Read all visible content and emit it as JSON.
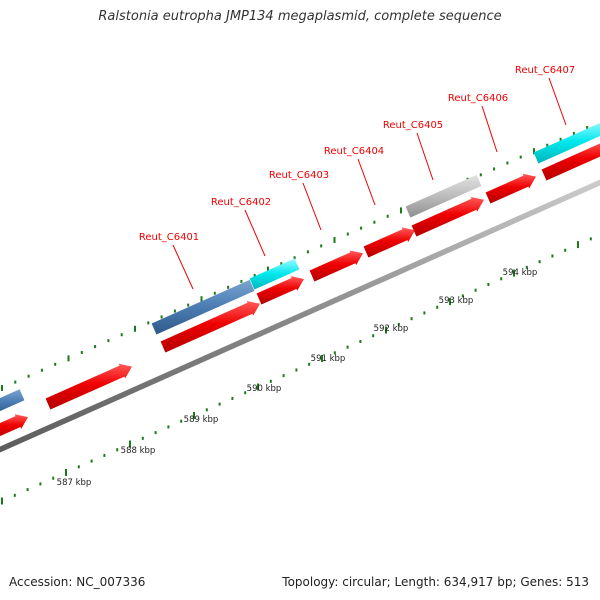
{
  "title": "Ralstonia eutropha JMP134 megaplasmid, complete sequence",
  "footer": {
    "accession": "Accession: NC_007336",
    "info": "Topology: circular; Length: 634,917 bp; Genes: 513"
  },
  "scale_labels": [
    "587 kbp",
    "588 kbp",
    "589 kbp",
    "590 kbp",
    "591 kbp",
    "592 kbp",
    "593 kbp",
    "594 kbp"
  ],
  "gene_labels": [
    "Reut_C6401",
    "Reut_C6402",
    "Reut_C6403",
    "Reut_C6404",
    "Reut_C6405",
    "Reut_C6406",
    "Reut_C6407"
  ],
  "colors": {
    "label": "#ee0000",
    "cds_forward": "#ee0000",
    "gene_blue": "#4a7cb2",
    "gene_cyan": "#00e8ee",
    "gene_gray": "#b8b8b8",
    "backbone": "#888888",
    "tick": "#1a7a1a"
  }
}
